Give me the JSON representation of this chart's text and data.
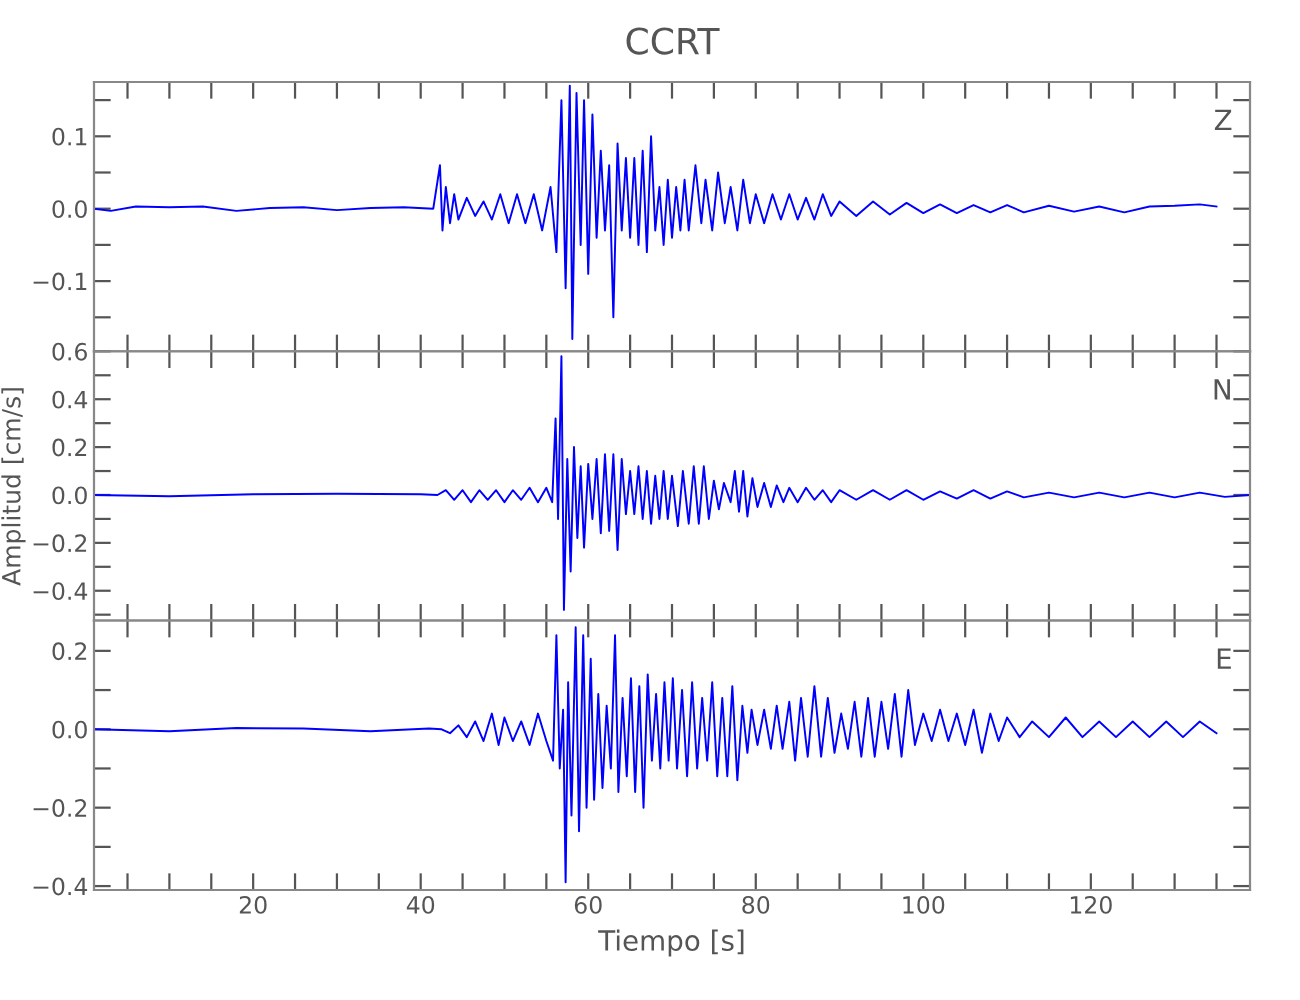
{
  "chart_data": [
    {
      "type": "line",
      "title": "CCRT",
      "annotations": [
        "Z"
      ],
      "tick_labels": "y",
      "xlim": [
        1,
        139
      ],
      "ylim": [
        -0.197,
        0.175
      ],
      "xticks": [
        {
          "value": 5,
          "label": null
        },
        {
          "value": 10,
          "label": null
        },
        {
          "value": 15,
          "label": null
        },
        {
          "value": 20,
          "label": null
        },
        {
          "value": 25,
          "label": null
        },
        {
          "value": 30,
          "label": null
        },
        {
          "value": 35,
          "label": null
        },
        {
          "value": 40,
          "label": null
        },
        {
          "value": 45,
          "label": null
        },
        {
          "value": 50,
          "label": null
        },
        {
          "value": 55,
          "label": null
        },
        {
          "value": 60,
          "label": null
        },
        {
          "value": 65,
          "label": null
        },
        {
          "value": 70,
          "label": null
        },
        {
          "value": 75,
          "label": null
        },
        {
          "value": 80,
          "label": null
        },
        {
          "value": 85,
          "label": null
        },
        {
          "value": 90,
          "label": null
        },
        {
          "value": 95,
          "label": null
        },
        {
          "value": 100,
          "label": null
        },
        {
          "value": 105,
          "label": null
        },
        {
          "value": 110,
          "label": null
        },
        {
          "value": 115,
          "label": null
        },
        {
          "value": 120,
          "label": null
        },
        {
          "value": 125,
          "label": null
        },
        {
          "value": 130,
          "label": null
        },
        {
          "value": 135,
          "label": null
        }
      ],
      "yticks": [
        {
          "value": -0.15,
          "label": null
        },
        {
          "value": -0.1,
          "label": "−0.1"
        },
        {
          "value": -0.05,
          "label": null
        },
        {
          "value": 0,
          "label": "0.0"
        },
        {
          "value": 0.05,
          "label": null
        },
        {
          "value": 0.1,
          "label": "0.1"
        },
        {
          "value": 0.15,
          "label": null
        }
      ],
      "series": [
        {
          "color": "#0000ff",
          "x": [
            1,
            3,
            6,
            10,
            14,
            18,
            22,
            26,
            30,
            34,
            38,
            41.5,
            42.3,
            42.6,
            43,
            43.5,
            44,
            44.5,
            45.5,
            46.5,
            47.5,
            48.5,
            49.5,
            50.5,
            51.5,
            52.5,
            53.5,
            54.5,
            55.5,
            56.2,
            56.8,
            57.3,
            57.8,
            58.1,
            58.6,
            59.1,
            59.5,
            60,
            60.5,
            61,
            61.5,
            62,
            62.5,
            63,
            63.5,
            64,
            64.5,
            65,
            65.5,
            66,
            66.5,
            67,
            67.5,
            68,
            68.5,
            69,
            69.5,
            70,
            70.5,
            71,
            71.5,
            72,
            72.8,
            73.5,
            74,
            74.8,
            75.5,
            76.3,
            77,
            77.8,
            78.5,
            79.3,
            80,
            81,
            82,
            83,
            84,
            85,
            86,
            87,
            88,
            89,
            90,
            92,
            94,
            96,
            98,
            100,
            102,
            104,
            106,
            108,
            110,
            112,
            115,
            118,
            121,
            124,
            127,
            130,
            133,
            135
          ],
          "values": [
            0,
            -0.003,
            0.003,
            0.002,
            0.003,
            -0.003,
            0.001,
            0.002,
            -0.002,
            0.001,
            0.002,
            0,
            0.06,
            -0.03,
            0.03,
            -0.02,
            0.02,
            -0.015,
            0.015,
            -0.01,
            0.01,
            -0.015,
            0.02,
            -0.02,
            0.02,
            -0.02,
            0.02,
            -0.03,
            0.03,
            -0.06,
            0.15,
            -0.11,
            0.17,
            -0.18,
            0.16,
            -0.05,
            0.15,
            -0.09,
            0.13,
            -0.04,
            0.08,
            -0.03,
            0.06,
            -0.15,
            0.09,
            -0.03,
            0.07,
            -0.04,
            0.07,
            -0.05,
            0.08,
            -0.06,
            0.1,
            -0.03,
            0.03,
            -0.05,
            0.04,
            -0.04,
            0.03,
            -0.03,
            0.04,
            -0.03,
            0.06,
            -0.02,
            0.04,
            -0.03,
            0.05,
            -0.02,
            0.03,
            -0.03,
            0.04,
            -0.02,
            0.02,
            -0.02,
            0.02,
            -0.015,
            0.02,
            -0.015,
            0.015,
            -0.015,
            0.02,
            -0.01,
            0.01,
            -0.01,
            0.01,
            -0.008,
            0.008,
            -0.006,
            0.006,
            -0.006,
            0.005,
            -0.005,
            0.005,
            -0.005,
            0.004,
            -0.004,
            0.003,
            -0.005,
            0.003,
            0.004,
            0.006,
            0.003
          ]
        }
      ]
    },
    {
      "type": "line",
      "ylabel": "Amplitud [cm/s]",
      "annotations": [
        "N"
      ],
      "tick_labels": "y",
      "xlim": [
        1,
        139
      ],
      "ylim": [
        -0.525,
        0.6
      ],
      "xticks": [
        {
          "value": 5,
          "label": null
        },
        {
          "value": 10,
          "label": null
        },
        {
          "value": 15,
          "label": null
        },
        {
          "value": 20,
          "label": null
        },
        {
          "value": 25,
          "label": null
        },
        {
          "value": 30,
          "label": null
        },
        {
          "value": 35,
          "label": null
        },
        {
          "value": 40,
          "label": null
        },
        {
          "value": 45,
          "label": null
        },
        {
          "value": 50,
          "label": null
        },
        {
          "value": 55,
          "label": null
        },
        {
          "value": 60,
          "label": null
        },
        {
          "value": 65,
          "label": null
        },
        {
          "value": 70,
          "label": null
        },
        {
          "value": 75,
          "label": null
        },
        {
          "value": 80,
          "label": null
        },
        {
          "value": 85,
          "label": null
        },
        {
          "value": 90,
          "label": null
        },
        {
          "value": 95,
          "label": null
        },
        {
          "value": 100,
          "label": null
        },
        {
          "value": 105,
          "label": null
        },
        {
          "value": 110,
          "label": null
        },
        {
          "value": 115,
          "label": null
        },
        {
          "value": 120,
          "label": null
        },
        {
          "value": 125,
          "label": null
        },
        {
          "value": 130,
          "label": null
        },
        {
          "value": 135,
          "label": null
        }
      ],
      "yticks": [
        {
          "value": -0.5,
          "label": null
        },
        {
          "value": -0.4,
          "label": "−0.4"
        },
        {
          "value": -0.3,
          "label": null
        },
        {
          "value": -0.2,
          "label": "−0.2"
        },
        {
          "value": -0.1,
          "label": null
        },
        {
          "value": 0,
          "label": "0.0"
        },
        {
          "value": 0.1,
          "label": null
        },
        {
          "value": 0.2,
          "label": "0.2"
        },
        {
          "value": 0.3,
          "label": null
        },
        {
          "value": 0.4,
          "label": "0.4"
        },
        {
          "value": 0.5,
          "label": null
        },
        {
          "value": 0.6,
          "label": "0.6"
        }
      ],
      "series": [
        {
          "color": "#0000ff",
          "x": [
            1,
            10,
            20,
            30,
            40,
            42,
            43,
            44,
            45,
            46,
            47,
            48,
            49,
            50,
            51,
            52,
            53,
            54,
            55,
            55.7,
            56.1,
            56.4,
            56.8,
            57.1,
            57.5,
            57.9,
            58.3,
            58.7,
            59.1,
            59.5,
            60,
            60.5,
            61,
            61.5,
            62,
            62.5,
            63,
            63.5,
            64,
            64.5,
            65,
            65.5,
            66,
            66.5,
            67,
            67.5,
            68,
            68.5,
            69,
            69.5,
            70,
            70.7,
            71.3,
            72,
            72.6,
            73.2,
            73.8,
            74.4,
            75,
            75.6,
            76.2,
            77,
            77.5,
            78,
            78.5,
            79,
            79.6,
            80.2,
            81,
            81.8,
            82.5,
            83.3,
            84,
            85,
            86,
            87,
            88,
            89,
            90,
            92,
            94,
            96,
            98,
            100,
            102,
            104,
            106,
            108,
            110,
            112,
            115,
            118,
            121,
            124,
            127,
            130,
            133,
            136,
            139
          ],
          "values": [
            0,
            -0.005,
            0.003,
            0.005,
            0.003,
            0,
            0.02,
            -0.02,
            0.02,
            -0.03,
            0.02,
            -0.02,
            0.02,
            -0.03,
            0.02,
            -0.02,
            0.03,
            -0.03,
            0.03,
            -0.03,
            0.32,
            -0.1,
            0.58,
            -0.48,
            0.15,
            -0.32,
            0.2,
            -0.18,
            0.12,
            -0.22,
            0.13,
            -0.1,
            0.15,
            -0.16,
            0.17,
            -0.15,
            0.17,
            -0.23,
            0.15,
            -0.08,
            0.1,
            -0.08,
            0.12,
            -0.1,
            0.1,
            -0.12,
            0.08,
            -0.1,
            0.1,
            -0.1,
            0.08,
            -0.13,
            0.1,
            -0.12,
            0.12,
            -0.12,
            0.12,
            -0.1,
            0.06,
            -0.06,
            0.05,
            -0.03,
            0.1,
            -0.07,
            0.1,
            -0.09,
            0.07,
            -0.05,
            0.05,
            -0.05,
            0.04,
            -0.03,
            0.03,
            -0.03,
            0.03,
            -0.02,
            0.02,
            -0.03,
            0.02,
            -0.02,
            0.02,
            -0.02,
            0.02,
            -0.02,
            0.015,
            -0.015,
            0.02,
            -0.015,
            0.015,
            -0.01,
            0.01,
            -0.01,
            0.01,
            -0.01,
            0.01,
            -0.01,
            0.01,
            -0.008,
            0
          ]
        }
      ]
    },
    {
      "type": "line",
      "xlabel": "Tiempo [s]",
      "annotations": [
        "E"
      ],
      "xlim": [
        1,
        139
      ],
      "ylim": [
        -0.41,
        0.277
      ],
      "xticks": [
        {
          "value": 5,
          "label": null
        },
        {
          "value": 10,
          "label": null
        },
        {
          "value": 15,
          "label": null
        },
        {
          "value": 20,
          "label": "20"
        },
        {
          "value": 25,
          "label": null
        },
        {
          "value": 30,
          "label": null
        },
        {
          "value": 35,
          "label": null
        },
        {
          "value": 40,
          "label": "40"
        },
        {
          "value": 45,
          "label": null
        },
        {
          "value": 50,
          "label": null
        },
        {
          "value": 55,
          "label": null
        },
        {
          "value": 60,
          "label": "60"
        },
        {
          "value": 65,
          "label": null
        },
        {
          "value": 70,
          "label": null
        },
        {
          "value": 75,
          "label": null
        },
        {
          "value": 80,
          "label": "80"
        },
        {
          "value": 85,
          "label": null
        },
        {
          "value": 90,
          "label": null
        },
        {
          "value": 95,
          "label": null
        },
        {
          "value": 100,
          "label": "100"
        },
        {
          "value": 105,
          "label": null
        },
        {
          "value": 110,
          "label": null
        },
        {
          "value": 115,
          "label": null
        },
        {
          "value": 120,
          "label": "120"
        },
        {
          "value": 125,
          "label": null
        },
        {
          "value": 130,
          "label": null
        },
        {
          "value": 135,
          "label": null
        }
      ],
      "yticks": [
        {
          "value": -0.4,
          "label": "−0.4"
        },
        {
          "value": -0.3,
          "label": null
        },
        {
          "value": -0.2,
          "label": "−0.2"
        },
        {
          "value": -0.1,
          "label": null
        },
        {
          "value": 0,
          "label": "0.0"
        },
        {
          "value": 0.1,
          "label": null
        },
        {
          "value": 0.2,
          "label": "0.2"
        }
      ],
      "series": [
        {
          "color": "#0000ff",
          "x": [
            1,
            10,
            18,
            26,
            34,
            41,
            42.5,
            43.5,
            44.5,
            45.5,
            46.5,
            47.5,
            48.5,
            49.3,
            50,
            51,
            52,
            53,
            54,
            55,
            55.8,
            56.2,
            56.6,
            57,
            57.3,
            57.6,
            58,
            58.5,
            58.9,
            59.4,
            59.8,
            60.3,
            60.7,
            61.2,
            61.7,
            62.2,
            62.7,
            63.2,
            63.6,
            64.1,
            64.6,
            65.1,
            65.6,
            66.1,
            66.6,
            67.1,
            67.6,
            68.1,
            68.6,
            69.1,
            69.6,
            70.1,
            70.6,
            71.2,
            71.8,
            72.4,
            73,
            73.6,
            74.2,
            74.8,
            75.4,
            76,
            76.6,
            77.2,
            77.8,
            78.4,
            79,
            79.5,
            80.2,
            81,
            81.8,
            82.5,
            83.2,
            84,
            84.7,
            85.4,
            86.2,
            87,
            87.8,
            88.6,
            89.4,
            90.2,
            91,
            91.8,
            92.6,
            93.4,
            94.2,
            95,
            95.8,
            96.6,
            97.4,
            98.2,
            99,
            100,
            101,
            102,
            103,
            104,
            105,
            106,
            107,
            108,
            109,
            110,
            111.5,
            113,
            115,
            117,
            119,
            121,
            123,
            125,
            127,
            129,
            131,
            133,
            135
          ],
          "values": [
            0,
            -0.005,
            0.003,
            0.002,
            -0.005,
            0.002,
            0,
            -0.01,
            0.01,
            -0.02,
            0.02,
            -0.03,
            0.04,
            -0.04,
            0.03,
            -0.03,
            0.02,
            -0.04,
            0.04,
            -0.03,
            -0.08,
            0.24,
            -0.1,
            0.05,
            -0.39,
            0.12,
            -0.22,
            0.26,
            -0.26,
            0.24,
            -0.2,
            0.18,
            -0.18,
            0.09,
            -0.15,
            0.06,
            -0.1,
            0.24,
            -0.16,
            0.08,
            -0.12,
            0.13,
            -0.16,
            0.11,
            -0.2,
            0.14,
            -0.08,
            0.09,
            -0.1,
            0.12,
            -0.08,
            0.13,
            -0.1,
            0.1,
            -0.12,
            0.12,
            -0.1,
            0.08,
            -0.08,
            0.12,
            -0.12,
            0.08,
            -0.12,
            0.11,
            -0.13,
            0.06,
            -0.06,
            0.05,
            -0.04,
            0.05,
            -0.05,
            0.06,
            -0.05,
            0.07,
            -0.08,
            0.08,
            -0.07,
            0.11,
            -0.07,
            0.08,
            -0.06,
            0.04,
            -0.05,
            0.07,
            -0.07,
            0.08,
            -0.07,
            0.07,
            -0.05,
            0.09,
            -0.07,
            0.1,
            -0.04,
            0.04,
            -0.03,
            0.05,
            -0.03,
            0.04,
            -0.04,
            0.05,
            -0.06,
            0.04,
            -0.03,
            0.03,
            -0.02,
            0.02,
            -0.02,
            0.03,
            -0.02,
            0.02,
            -0.02,
            0.02,
            -0.02,
            0.02,
            -0.02,
            0.02,
            -0.01
          ]
        }
      ]
    }
  ]
}
